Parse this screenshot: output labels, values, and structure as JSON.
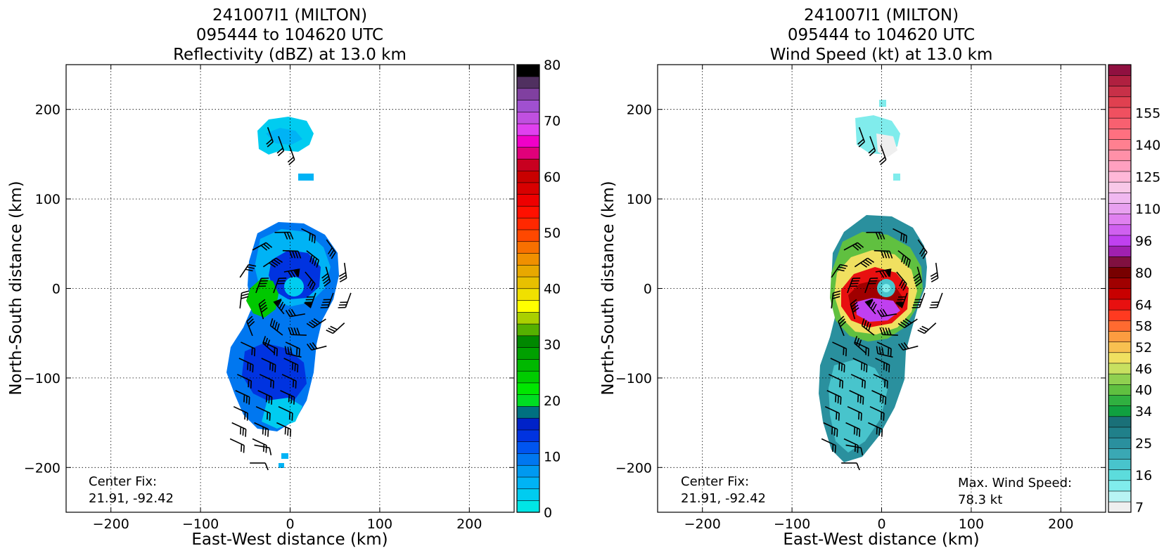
{
  "chart_data": [
    {
      "type": "heatmap",
      "title": [
        "241007I1 (MILTON)",
        "095444 to 104620 UTC",
        "Reflectivity (dBZ) at 13.0 km"
      ],
      "xlabel": "East-West distance (km)",
      "ylabel": "North-South distance (km)",
      "xlim": [
        -250,
        250
      ],
      "ylim": [
        -250,
        250
      ],
      "xticks": [
        -200,
        -100,
        0,
        100,
        200
      ],
      "yticks": [
        -200,
        -100,
        0,
        100,
        200
      ],
      "grid": true,
      "colorbar": {
        "min": 0,
        "max": 80,
        "tick_values": [
          0,
          10,
          20,
          30,
          40,
          50,
          60,
          70,
          80
        ],
        "tick_labels": [
          "0",
          "10",
          "20",
          "30",
          "40",
          "50",
          "60",
          "70",
          "80"
        ],
        "colors": [
          "#00e6e6",
          "#00ccf0",
          "#00b3f5",
          "#0099f0",
          "#0077f0",
          "#0055f0",
          "#0033e0",
          "#0022c8",
          "#007080",
          "#00dd22",
          "#00e600",
          "#00cc00",
          "#00b800",
          "#00a000",
          "#008800",
          "#55b000",
          "#aad000",
          "#ffff00",
          "#f0e000",
          "#e8c000",
          "#e8a800",
          "#f09000",
          "#f87000",
          "#ff4800",
          "#ff2800",
          "#ff1000",
          "#ee0000",
          "#d80000",
          "#c80000",
          "#c80020",
          "#e0007a",
          "#f000c8",
          "#e040f0",
          "#c050e0",
          "#a050d0",
          "#8040a0",
          "#503060",
          "#000000"
        ]
      },
      "annotations": {
        "center_fix_label": "Center Fix:",
        "center_fix_value": "21.91, -92.42"
      }
    },
    {
      "type": "heatmap",
      "title": [
        "241007I1 (MILTON)",
        "095444 to 104620 UTC",
        "Wind Speed (kt) at 13.0 km"
      ],
      "xlabel": "East-West distance (km)",
      "ylabel": "North-South distance (km)",
      "xlim": [
        -250,
        250
      ],
      "ylim": [
        -250,
        250
      ],
      "xticks": [
        -200,
        -100,
        0,
        100,
        200
      ],
      "yticks": [
        -200,
        -100,
        0,
        100,
        200
      ],
      "grid": true,
      "colorbar": {
        "tick_labels": [
          "7",
          "16",
          "25",
          "34",
          "40",
          "46",
          "52",
          "58",
          "64",
          "80",
          "96",
          "110",
          "125",
          "140",
          "155"
        ],
        "tick_bins": [
          0,
          3,
          6,
          9,
          11,
          13,
          15,
          17,
          19,
          22,
          25,
          28,
          31,
          34,
          37
        ],
        "colors": [
          "#efefef",
          "#b8f4f4",
          "#80ecec",
          "#5cdcdc",
          "#48c4cc",
          "#3aa8b4",
          "#2a909e",
          "#20808a",
          "#1a7078",
          "#10a040",
          "#30b040",
          "#60c040",
          "#90d050",
          "#c8e060",
          "#f0e060",
          "#f8c050",
          "#fc9c40",
          "#ff6a30",
          "#ff3a20",
          "#e81010",
          "#c80000",
          "#a00000",
          "#780000",
          "#801040",
          "#a020b0",
          "#c040f0",
          "#d060f0",
          "#e080f0",
          "#e8a0f0",
          "#f0b8f0",
          "#f8c8e8",
          "#ffb8d8",
          "#ffa0c0",
          "#ff90a8",
          "#ff8090",
          "#ff7080",
          "#f86070",
          "#f05060",
          "#e04050",
          "#c83048",
          "#b02040",
          "#901040"
        ]
      },
      "annotations": {
        "center_fix_label": "Center Fix:",
        "center_fix_value": "21.91, -92.42",
        "max_wind_label": "Max. Wind Speed:",
        "max_wind_value": "78.3 kt"
      }
    }
  ]
}
